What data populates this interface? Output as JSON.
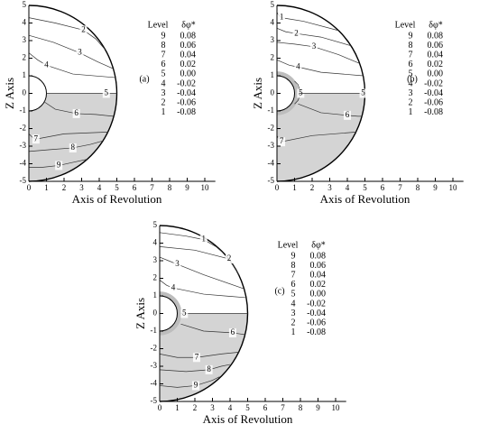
{
  "chart_data": [
    {
      "type": "contour",
      "panel_label": "(a)",
      "x_label": "Axis of Revolution",
      "y_label": "Z Axis",
      "xlim": [
        0,
        10.6
      ],
      "ylim": [
        -5,
        5
      ],
      "xticks": [
        0,
        1,
        2,
        3,
        4,
        5,
        6,
        7,
        8,
        9,
        10
      ],
      "yticks": [
        -5,
        -4,
        -3,
        -2,
        -1,
        0,
        1,
        2,
        3,
        4,
        5
      ],
      "legend": {
        "level_header": "Level",
        "value_header": "δφ*",
        "levels": [
          9,
          8,
          7,
          6,
          5,
          4,
          3,
          2,
          1
        ],
        "values": [
          0.08,
          0.06,
          0.04,
          0.02,
          {
            "value": 0,
            "label": "0.00"
          },
          -0.02,
          -0.04,
          -0.06,
          -0.08
        ]
      },
      "contours": [
        {
          "level": 2,
          "x": [
            0,
            1.5,
            3.1,
            3.8,
            4.33
          ],
          "y": [
            4.3,
            4.0,
            3.6,
            3.1,
            2.5
          ]
        },
        {
          "level": 3,
          "x": [
            0,
            1.4,
            2.9,
            3.9,
            4.8
          ],
          "y": [
            3.3,
            2.9,
            2.3,
            1.8,
            1.4
          ]
        },
        {
          "level": 4,
          "x": [
            0,
            0.5,
            1.0,
            2.5,
            4.9
          ],
          "y": [
            2.3,
            1.9,
            1.6,
            1.1,
            0.9
          ]
        },
        {
          "level": 5,
          "x": [
            1,
            2.5,
            4.4,
            4.7,
            5
          ],
          "y": [
            0,
            0,
            0,
            0,
            0
          ]
        },
        {
          "level": 6,
          "x": [
            0.9,
            1.5,
            2.7,
            3.8,
            4.8
          ],
          "y": [
            -0.5,
            -0.9,
            -1.15,
            -1.2,
            -1.3
          ]
        },
        {
          "level": 7,
          "x": [
            0,
            0.2,
            0.4,
            2,
            4.5
          ],
          "y": [
            -2.3,
            -2.5,
            -2.6,
            -2.3,
            -2.2
          ]
        },
        {
          "level": 8,
          "x": [
            0,
            1.2,
            2.5,
            3.5,
            4.2
          ],
          "y": [
            -3.3,
            -3.2,
            -3.1,
            -2.9,
            -2.7
          ]
        },
        {
          "level": 9,
          "x": [
            0,
            0.8,
            1.7,
            2.6,
            3.3
          ],
          "y": [
            -4.2,
            -4.2,
            -4.1,
            -3.9,
            -3.75
          ]
        }
      ]
    },
    {
      "type": "contour",
      "panel_label": "(b)",
      "x_label": "Axis of Revolution",
      "y_label": "Z Axis",
      "xlim": [
        0,
        10.6
      ],
      "ylim": [
        -5,
        5
      ],
      "xticks": [
        0,
        1,
        2,
        3,
        4,
        5,
        6,
        7,
        8,
        9,
        10
      ],
      "yticks": [
        -5,
        -4,
        -3,
        -2,
        -1,
        0,
        1,
        2,
        3,
        4,
        5
      ],
      "legend": {
        "level_header": "Level",
        "value_header": "δφ*",
        "levels": [
          9,
          8,
          7,
          6,
          5,
          4,
          3,
          2,
          1
        ],
        "values": [
          0.08,
          0.06,
          0.04,
          0.02,
          {
            "value": 0,
            "label": "0.00"
          },
          -0.02,
          -0.04,
          -0.06,
          -0.08
        ]
      },
      "contours": [
        {
          "level": 1,
          "x": [
            0,
            0.1,
            0.26,
            1.5,
            3.5
          ],
          "y": [
            4.6,
            4.45,
            4.3,
            4.1,
            3.57
          ]
        },
        {
          "level": 2,
          "x": [
            0,
            0.5,
            1.1,
            2.5,
            4.2
          ],
          "y": [
            3.7,
            3.5,
            3.4,
            3.2,
            2.71
          ]
        },
        {
          "level": 3,
          "x": [
            0,
            1,
            2.1,
            3.5,
            4.7
          ],
          "y": [
            2.9,
            2.8,
            2.65,
            2.2,
            1.7
          ]
        },
        {
          "level": 4,
          "x": [
            0,
            0.7,
            1.2,
            2.5,
            4.9
          ],
          "y": [
            1.9,
            1.6,
            1.5,
            1.2,
            1.0
          ]
        },
        {
          "level": 5,
          "x": [
            1.0,
            1.2,
            1.35,
            1.2,
            1.0
          ],
          "y": [
            0.7,
            0.5,
            0,
            -0.4,
            -0.6
          ]
        },
        {
          "level": 5,
          "x": [
            1.25,
            3,
            4.9,
            4.95,
            5
          ],
          "y": [
            0,
            0,
            0,
            0,
            0
          ]
        },
        {
          "level": 6,
          "x": [
            1.2,
            2.5,
            4.0,
            4.6,
            4.85
          ],
          "y": [
            -0.6,
            -1.1,
            -1.25,
            -1.3,
            -1.3
          ]
        },
        {
          "level": 7,
          "x": [
            0,
            0.1,
            0.26,
            2,
            4.5
          ],
          "y": [
            -2.4,
            -2.6,
            -2.75,
            -2.4,
            -2.2
          ]
        }
      ]
    },
    {
      "type": "contour",
      "panel_label": "(c)",
      "x_label": "Axis of Revolution",
      "y_label": "Z Axis",
      "xlim": [
        0,
        10.6
      ],
      "ylim": [
        -5,
        5
      ],
      "xticks": [
        0,
        1,
        2,
        3,
        4,
        5,
        6,
        7,
        8,
        9,
        10
      ],
      "yticks": [
        -5,
        -4,
        -3,
        -2,
        -1,
        0,
        1,
        2,
        3,
        4,
        5
      ],
      "legend": {
        "level_header": "Level",
        "value_header": "δφ*",
        "levels": [
          9,
          8,
          7,
          6,
          5,
          4,
          3,
          2,
          1
        ],
        "values": [
          0.08,
          0.06,
          0.04,
          0.02,
          {
            "value": 0,
            "label": "0.00"
          },
          -0.02,
          -0.04,
          -0.06,
          -0.08
        ]
      },
      "contours": [
        {
          "level": 1,
          "x": [
            0,
            1.5,
            2.5,
            3.2,
            3.6
          ],
          "y": [
            4.6,
            4.4,
            4.2,
            3.8,
            3.45
          ]
        },
        {
          "level": 2,
          "x": [
            0,
            2,
            3.95,
            4.2,
            4.5
          ],
          "y": [
            3.8,
            3.6,
            3.1,
            2.7,
            2.2
          ]
        },
        {
          "level": 3,
          "x": [
            0,
            0.5,
            1.0,
            2.5,
            4.8
          ],
          "y": [
            3.2,
            3.0,
            2.8,
            2.2,
            1.4
          ]
        },
        {
          "level": 4,
          "x": [
            0,
            0.4,
            0.77,
            2.5,
            4.9
          ],
          "y": [
            1.9,
            1.6,
            1.45,
            1.1,
            0.9
          ]
        },
        {
          "level": 5,
          "x": [
            1.2,
            1.3,
            1.4,
            3,
            5
          ],
          "y": [
            0,
            0,
            0,
            0,
            0
          ]
        },
        {
          "level": 6,
          "x": [
            1.2,
            2.5,
            4.15,
            4.5,
            4.85
          ],
          "y": [
            -0.6,
            -1.0,
            -1.1,
            -1.15,
            -1.2
          ]
        },
        {
          "level": 7,
          "x": [
            0,
            1,
            2.1,
            3.5,
            4.5
          ],
          "y": [
            -2.3,
            -2.5,
            -2.5,
            -2.3,
            -2.2
          ]
        },
        {
          "level": 8,
          "x": [
            0,
            1.5,
            2.8,
            3.5,
            4.0
          ],
          "y": [
            -3.2,
            -3.3,
            -3.2,
            -3.0,
            -2.9
          ]
        },
        {
          "level": 9,
          "x": [
            0,
            1,
            2.05,
            3,
            3.4
          ],
          "y": [
            -4.1,
            -4.2,
            -4.1,
            -3.8,
            -3.6
          ]
        }
      ]
    }
  ]
}
